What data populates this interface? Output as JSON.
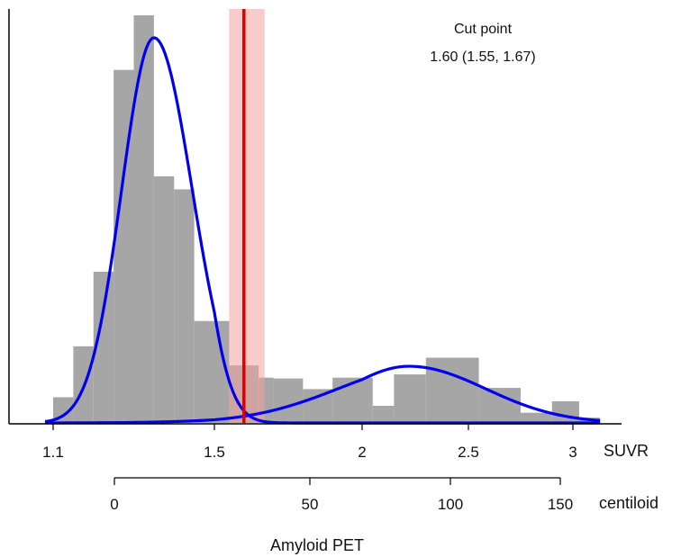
{
  "chart_data": {
    "type": "histogram",
    "xlabel": "Amyloid PET",
    "axes": {
      "primary": {
        "name": "SUVR",
        "range": [
          1.08,
          3.13
        ],
        "ticks": [
          1.1,
          1.5,
          2,
          2.5,
          3
        ],
        "tick_labels": [
          "1.1",
          "1.5",
          "2",
          "2.5",
          "3"
        ]
      },
      "secondary": {
        "name": "centiloid",
        "ticks": [
          0,
          50,
          100,
          150
        ],
        "tick_labels": [
          "0",
          "50",
          "100",
          "150"
        ]
      }
    },
    "ylim": [
      0,
      1
    ],
    "histogram": {
      "color": "#a6a6a6",
      "bins": [
        {
          "x0": 1.08,
          "x1": 1.1,
          "height": 0.008
        },
        {
          "x0": 1.1,
          "x1": 1.15,
          "height": 0.063
        },
        {
          "x0": 1.15,
          "x1": 1.2,
          "height": 0.188
        },
        {
          "x0": 1.2,
          "x1": 1.25,
          "height": 0.371
        },
        {
          "x0": 1.25,
          "x1": 1.3,
          "height": 0.866
        },
        {
          "x0": 1.3,
          "x1": 1.35,
          "height": 1.0
        },
        {
          "x0": 1.35,
          "x1": 1.4,
          "height": 0.605
        },
        {
          "x0": 1.4,
          "x1": 1.45,
          "height": 0.573
        },
        {
          "x0": 1.45,
          "x1": 1.5,
          "height": 0.25
        },
        {
          "x0": 1.5,
          "x1": 1.55,
          "height": 0.25
        },
        {
          "x0": 1.55,
          "x1": 1.6,
          "height": 0.141
        },
        {
          "x0": 1.6,
          "x1": 1.65,
          "height": 0.141
        },
        {
          "x0": 1.65,
          "x1": 1.7,
          "height": 0.111
        },
        {
          "x0": 1.7,
          "x1": 1.8,
          "height": 0.109
        },
        {
          "x0": 1.8,
          "x1": 1.9,
          "height": 0.083
        },
        {
          "x0": 1.9,
          "x1": 2.05,
          "height": 0.111
        },
        {
          "x0": 2.05,
          "x1": 2.15,
          "height": 0.042
        },
        {
          "x0": 2.15,
          "x1": 2.3,
          "height": 0.119
        },
        {
          "x0": 2.3,
          "x1": 2.55,
          "height": 0.16
        },
        {
          "x0": 2.55,
          "x1": 2.75,
          "height": 0.086
        },
        {
          "x0": 2.75,
          "x1": 2.9,
          "height": 0.025
        },
        {
          "x0": 2.9,
          "x1": 3.03,
          "height": 0.053
        },
        {
          "x0": 3.03,
          "x1": 3.13,
          "height": 0.013
        }
      ]
    },
    "mixture_components": [
      {
        "name": "",
        "color": "#0000ee",
        "mean": 1.35,
        "sd_left": 0.08,
        "sd_right": 0.095,
        "peak": 0.945
      },
      {
        "name": "",
        "color": "#0000ee",
        "mean": 2.22,
        "sd_left": 0.3,
        "sd_right": 0.36,
        "peak": 0.139
      }
    ],
    "cut_point": {
      "value": 1.6,
      "ci": [
        1.55,
        1.67
      ],
      "line_color": "#dd0000",
      "band_color": "#f4a3a3"
    },
    "annotations": [
      "Cut point",
      "1.60 (1.55, 1.67)"
    ]
  }
}
